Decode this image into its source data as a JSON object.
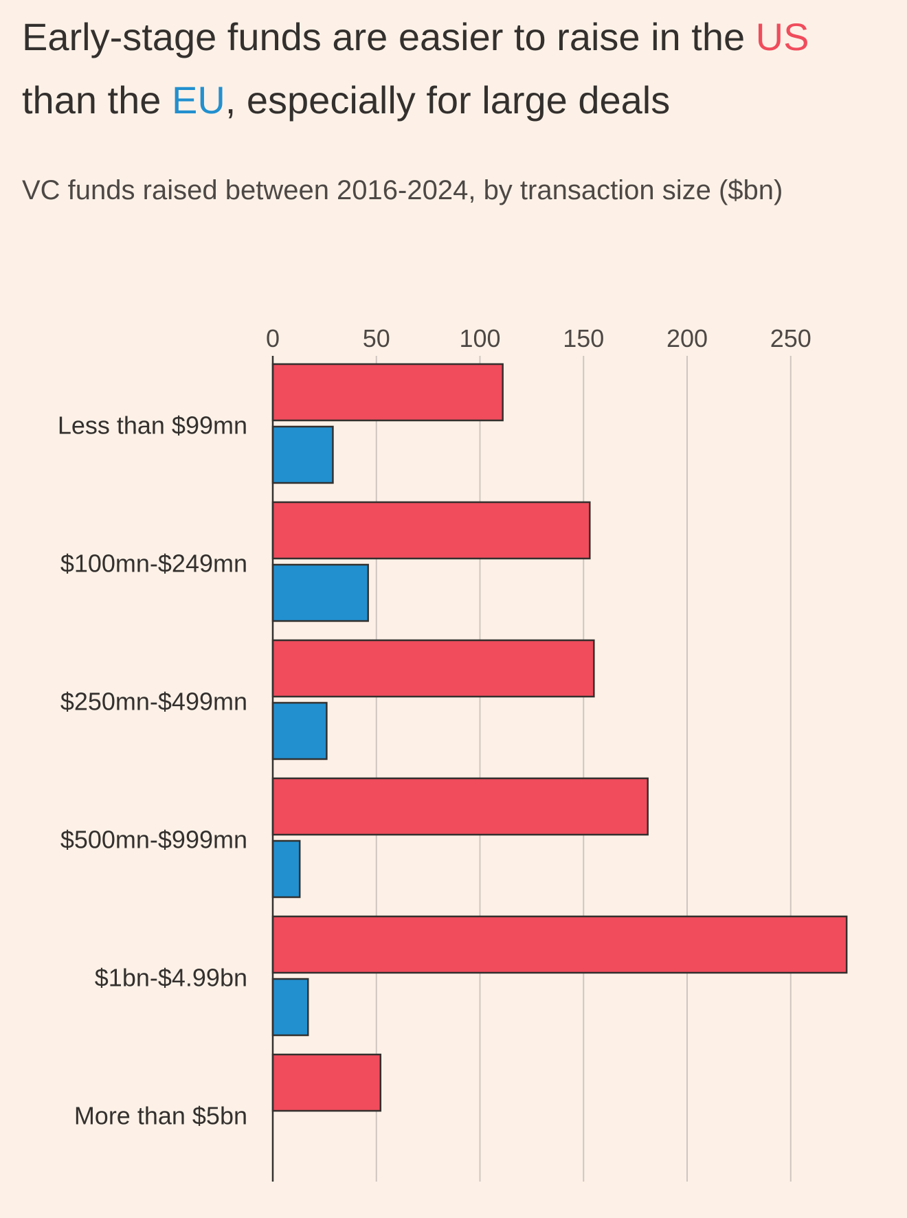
{
  "title": {
    "part1": "Early-stage funds are easier to raise in the ",
    "us_word": "US",
    "part2": "than the ",
    "eu_word": "EU",
    "part3": ", especially for large deals"
  },
  "subtitle": "VC funds raised between 2016-2024, by transaction size ($bn)",
  "colors": {
    "us": "#f04c5c",
    "eu": "#2290cf",
    "background": "#fdf1e7",
    "gridline": "#cec6c0",
    "axis": "#33302e"
  },
  "chart_data": {
    "type": "bar",
    "orientation": "horizontal",
    "title": "Early-stage funds are easier to raise in the US than the EU, especially for large deals",
    "subtitle": "VC funds raised between 2016-2024, by transaction size ($bn)",
    "categories": [
      "Less than $99mn",
      "$100mn-$249mn",
      "$250mn-$499mn",
      "$500mn-$999mn",
      "$1bn-$4.99bn",
      "More than $5bn"
    ],
    "series": [
      {
        "name": "US",
        "color": "#f04c5c",
        "values": [
          111,
          153,
          155,
          181,
          277,
          52
        ]
      },
      {
        "name": "EU",
        "color": "#2290cf",
        "values": [
          29,
          46,
          26,
          13,
          17,
          0
        ]
      }
    ],
    "xlim": [
      0,
      280
    ],
    "xticks": [
      0,
      50,
      100,
      150,
      200,
      250
    ],
    "xtick_labels": [
      "0",
      "50",
      "100",
      "150",
      "200",
      "250"
    ],
    "grid": true,
    "xlabel": "",
    "ylabel": ""
  }
}
